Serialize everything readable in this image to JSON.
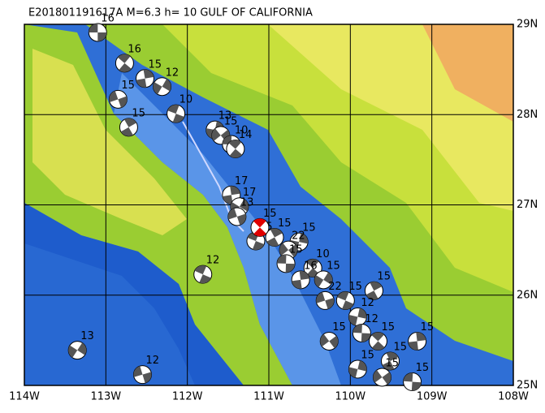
{
  "map": {
    "title": "E201801191617A M=6.3 h= 10 GULF OF CALIFORNIA",
    "lonlim": [
      -114,
      -108
    ],
    "latlim": [
      25,
      29
    ],
    "lonticks": [
      {
        "value": -114,
        "label": "114W"
      },
      {
        "value": -113,
        "label": "113W"
      },
      {
        "value": -112,
        "label": "112W"
      },
      {
        "value": -111,
        "label": "111W"
      },
      {
        "value": -110,
        "label": "110W"
      },
      {
        "value": -109,
        "label": "109W"
      },
      {
        "value": -108,
        "label": "108W"
      }
    ],
    "latticks": [
      {
        "value": 29,
        "label": "29N"
      },
      {
        "value": 28,
        "label": "28N"
      },
      {
        "value": 27,
        "label": "27N"
      },
      {
        "value": 26,
        "label": "26N"
      },
      {
        "value": 25,
        "label": "25N"
      }
    ],
    "events": [
      {
        "lon": -113.1,
        "lat": 28.91,
        "depth": "16"
      },
      {
        "lon": -112.77,
        "lat": 28.57,
        "depth": "16"
      },
      {
        "lon": -112.52,
        "lat": 28.4,
        "depth": "15"
      },
      {
        "lon": -112.31,
        "lat": 28.31,
        "depth": "12"
      },
      {
        "lon": -112.85,
        "lat": 28.17,
        "depth": "15"
      },
      {
        "lon": -112.14,
        "lat": 28.01,
        "depth": "10"
      },
      {
        "lon": -112.72,
        "lat": 27.86,
        "depth": "15"
      },
      {
        "lon": -111.66,
        "lat": 27.83,
        "depth": "13"
      },
      {
        "lon": -111.59,
        "lat": 27.77,
        "depth": "15"
      },
      {
        "lon": -111.46,
        "lat": 27.67,
        "depth": "10"
      },
      {
        "lon": -111.41,
        "lat": 27.62,
        "depth": "14"
      },
      {
        "lon": -111.46,
        "lat": 27.11,
        "depth": "17"
      },
      {
        "lon": -111.36,
        "lat": 26.98,
        "depth": "17"
      },
      {
        "lon": -111.39,
        "lat": 26.87,
        "depth": "13"
      },
      {
        "lon": -111.16,
        "lat": 26.6,
        "depth": "15"
      },
      {
        "lon": -110.93,
        "lat": 26.64,
        "depth": "15"
      },
      {
        "lon": -110.63,
        "lat": 26.59,
        "depth": "15"
      },
      {
        "lon": -110.76,
        "lat": 26.5,
        "depth": "22"
      },
      {
        "lon": -110.79,
        "lat": 26.35,
        "depth": "15"
      },
      {
        "lon": -110.46,
        "lat": 26.3,
        "depth": "10"
      },
      {
        "lon": -110.61,
        "lat": 26.17,
        "depth": "16"
      },
      {
        "lon": -110.33,
        "lat": 26.17,
        "depth": "15"
      },
      {
        "lon": -110.31,
        "lat": 25.94,
        "depth": "22"
      },
      {
        "lon": -110.06,
        "lat": 25.94,
        "depth": "15"
      },
      {
        "lon": -109.71,
        "lat": 26.05,
        "depth": "15"
      },
      {
        "lon": -109.91,
        "lat": 25.76,
        "depth": "12"
      },
      {
        "lon": -110.26,
        "lat": 25.49,
        "depth": "15"
      },
      {
        "lon": -109.86,
        "lat": 25.58,
        "depth": "12"
      },
      {
        "lon": -109.66,
        "lat": 25.49,
        "depth": "15"
      },
      {
        "lon": -109.18,
        "lat": 25.49,
        "depth": "15"
      },
      {
        "lon": -113.35,
        "lat": 25.39,
        "depth": "13"
      },
      {
        "lon": -112.55,
        "lat": 25.12,
        "depth": "12"
      },
      {
        "lon": -111.81,
        "lat": 26.23,
        "depth": "12"
      },
      {
        "lon": -109.51,
        "lat": 25.27,
        "depth": "15"
      },
      {
        "lon": -109.91,
        "lat": 25.18,
        "depth": "15"
      },
      {
        "lon": -109.61,
        "lat": 25.09,
        "depth": "15"
      },
      {
        "lon": -109.24,
        "lat": 25.04,
        "depth": "15"
      },
      {
        "lon": -111.11,
        "lat": 26.75,
        "depth": "15"
      }
    ],
    "main_event_color": "#e00000"
  }
}
